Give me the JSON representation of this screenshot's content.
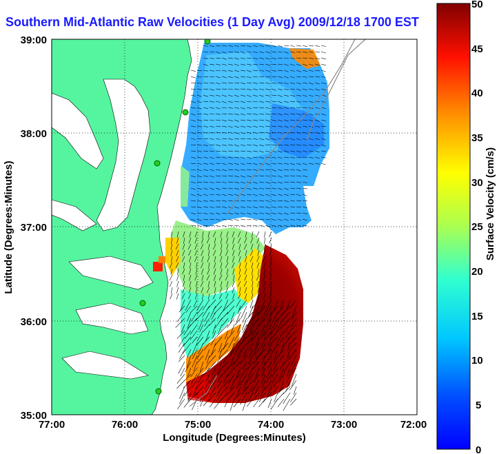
{
  "title": "Southern Mid-Atlantic Raw Velocities (1 Day Avg) 2009/12/18 1700 EST",
  "xlabel": "Longitude (Degrees:Minutes)",
  "ylabel": "Latitude (Degrees:Minutes)",
  "x_ticks": [
    "77:00",
    "76:00",
    "75:00",
    "74:00",
    "73:00",
    "72:00"
  ],
  "y_ticks": [
    "39:00",
    "38:00",
    "37:00",
    "36:00",
    "35:00"
  ],
  "colorbar": {
    "label": "Surface Velocity (cm/s)",
    "ticks": [
      "50",
      "45",
      "40",
      "35",
      "30",
      "25",
      "20",
      "15",
      "10",
      "5",
      "0"
    ],
    "min": 0,
    "max": 50
  },
  "colors": {
    "land": "#55f5a0",
    "title": "#1a1aff",
    "station": "#22cc22"
  }
}
